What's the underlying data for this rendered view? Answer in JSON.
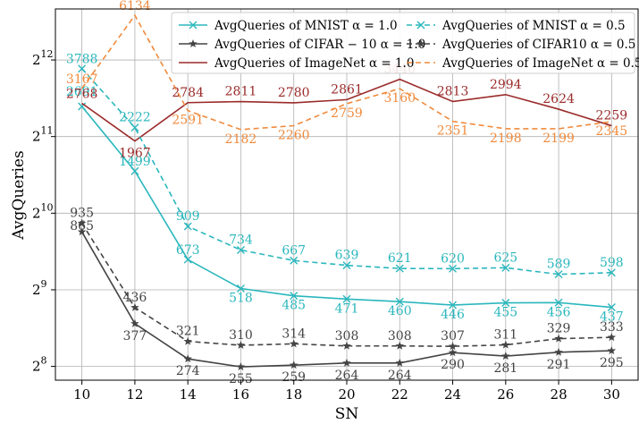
{
  "chart_data": {
    "type": "line",
    "title": "",
    "xlabel": "SN",
    "ylabel": "AvgQueries",
    "yscale": "log2",
    "x": [
      10,
      12,
      14,
      16,
      18,
      20,
      22,
      24,
      26,
      28,
      30
    ],
    "xlim": [
      9,
      31
    ],
    "ylim": [
      226,
      6500
    ],
    "yticks": [
      {
        "base": "2",
        "exp": "8",
        "value": 256
      },
      {
        "base": "2",
        "exp": "9",
        "value": 512
      },
      {
        "base": "2",
        "exp": "10",
        "value": 1024
      },
      {
        "base": "2",
        "exp": "11",
        "value": 2048
      },
      {
        "base": "2",
        "exp": "12",
        "value": 4096
      }
    ],
    "grid": true,
    "legend_position": "top",
    "series": [
      {
        "name": "AvgQueries of MNIST α = 1.0",
        "color": "#2ab7bd",
        "dash": "solid",
        "marker": "x",
        "values": [
          2691,
          1499,
          673,
          518,
          485,
          471,
          460,
          446,
          455,
          456,
          437
        ],
        "labels": [
          "2691",
          "1499",
          "673",
          "518",
          "485",
          "471",
          "460",
          "446",
          "455",
          "456",
          "437"
        ]
      },
      {
        "name": "AvgQueries of CIFAR − 10 α = 1.0",
        "color": "#444444",
        "dash": "solid",
        "marker": "star",
        "values": [
          865,
          377,
          274,
          255,
          259,
          264,
          264,
          290,
          281,
          291,
          295
        ],
        "labels": [
          "865",
          "377",
          "274",
          "255",
          "259",
          "264",
          "264",
          "290",
          "281",
          "291",
          "295"
        ]
      },
      {
        "name": "AvgQueries of ImageNet α = 1.0",
        "color": "#9b2a2a",
        "dash": "solid",
        "marker": "none",
        "values": [
          2768,
          1967,
          2784,
          2811,
          2780,
          2861,
          3440,
          2813,
          2994,
          2624,
          2259
        ],
        "labels": [
          "2768",
          "1967",
          "2784",
          "2811",
          "2780",
          "2861",
          "3440",
          "2813",
          "2994",
          "2624",
          "2259"
        ]
      },
      {
        "name": "AvgQueries of MNIST α = 0.5",
        "color": "#2ab7bd",
        "dash": "dashed",
        "marker": "x",
        "values": [
          3788,
          2222,
          909,
          734,
          667,
          639,
          621,
          620,
          625,
          589,
          598
        ],
        "labels": [
          "3788",
          "2222",
          "909",
          "734",
          "667",
          "639",
          "621",
          "620",
          "625",
          "589",
          "598"
        ]
      },
      {
        "name": "AvgQueries of CIFAR10 α = 0.5",
        "color": "#444444",
        "dash": "dashed",
        "marker": "star",
        "values": [
          935,
          436,
          321,
          310,
          314,
          308,
          308,
          307,
          311,
          329,
          333
        ],
        "labels": [
          "935",
          "436",
          "321",
          "310",
          "314",
          "308",
          "308",
          "307",
          "311",
          "329",
          "333"
        ]
      },
      {
        "name": "AvgQueries of ImageNet α = 0.5",
        "color": "#f08a3c",
        "dash": "dashed",
        "marker": "none",
        "values": [
          3167,
          6134,
          2591,
          2182,
          2260,
          2759,
          3160,
          2351,
          2198,
          2199,
          2345
        ],
        "labels": [
          "3167",
          "6134",
          "2591",
          "2182",
          "2260",
          "2759",
          "3160",
          "2351",
          "2198",
          "2199",
          "2345"
        ]
      }
    ]
  }
}
